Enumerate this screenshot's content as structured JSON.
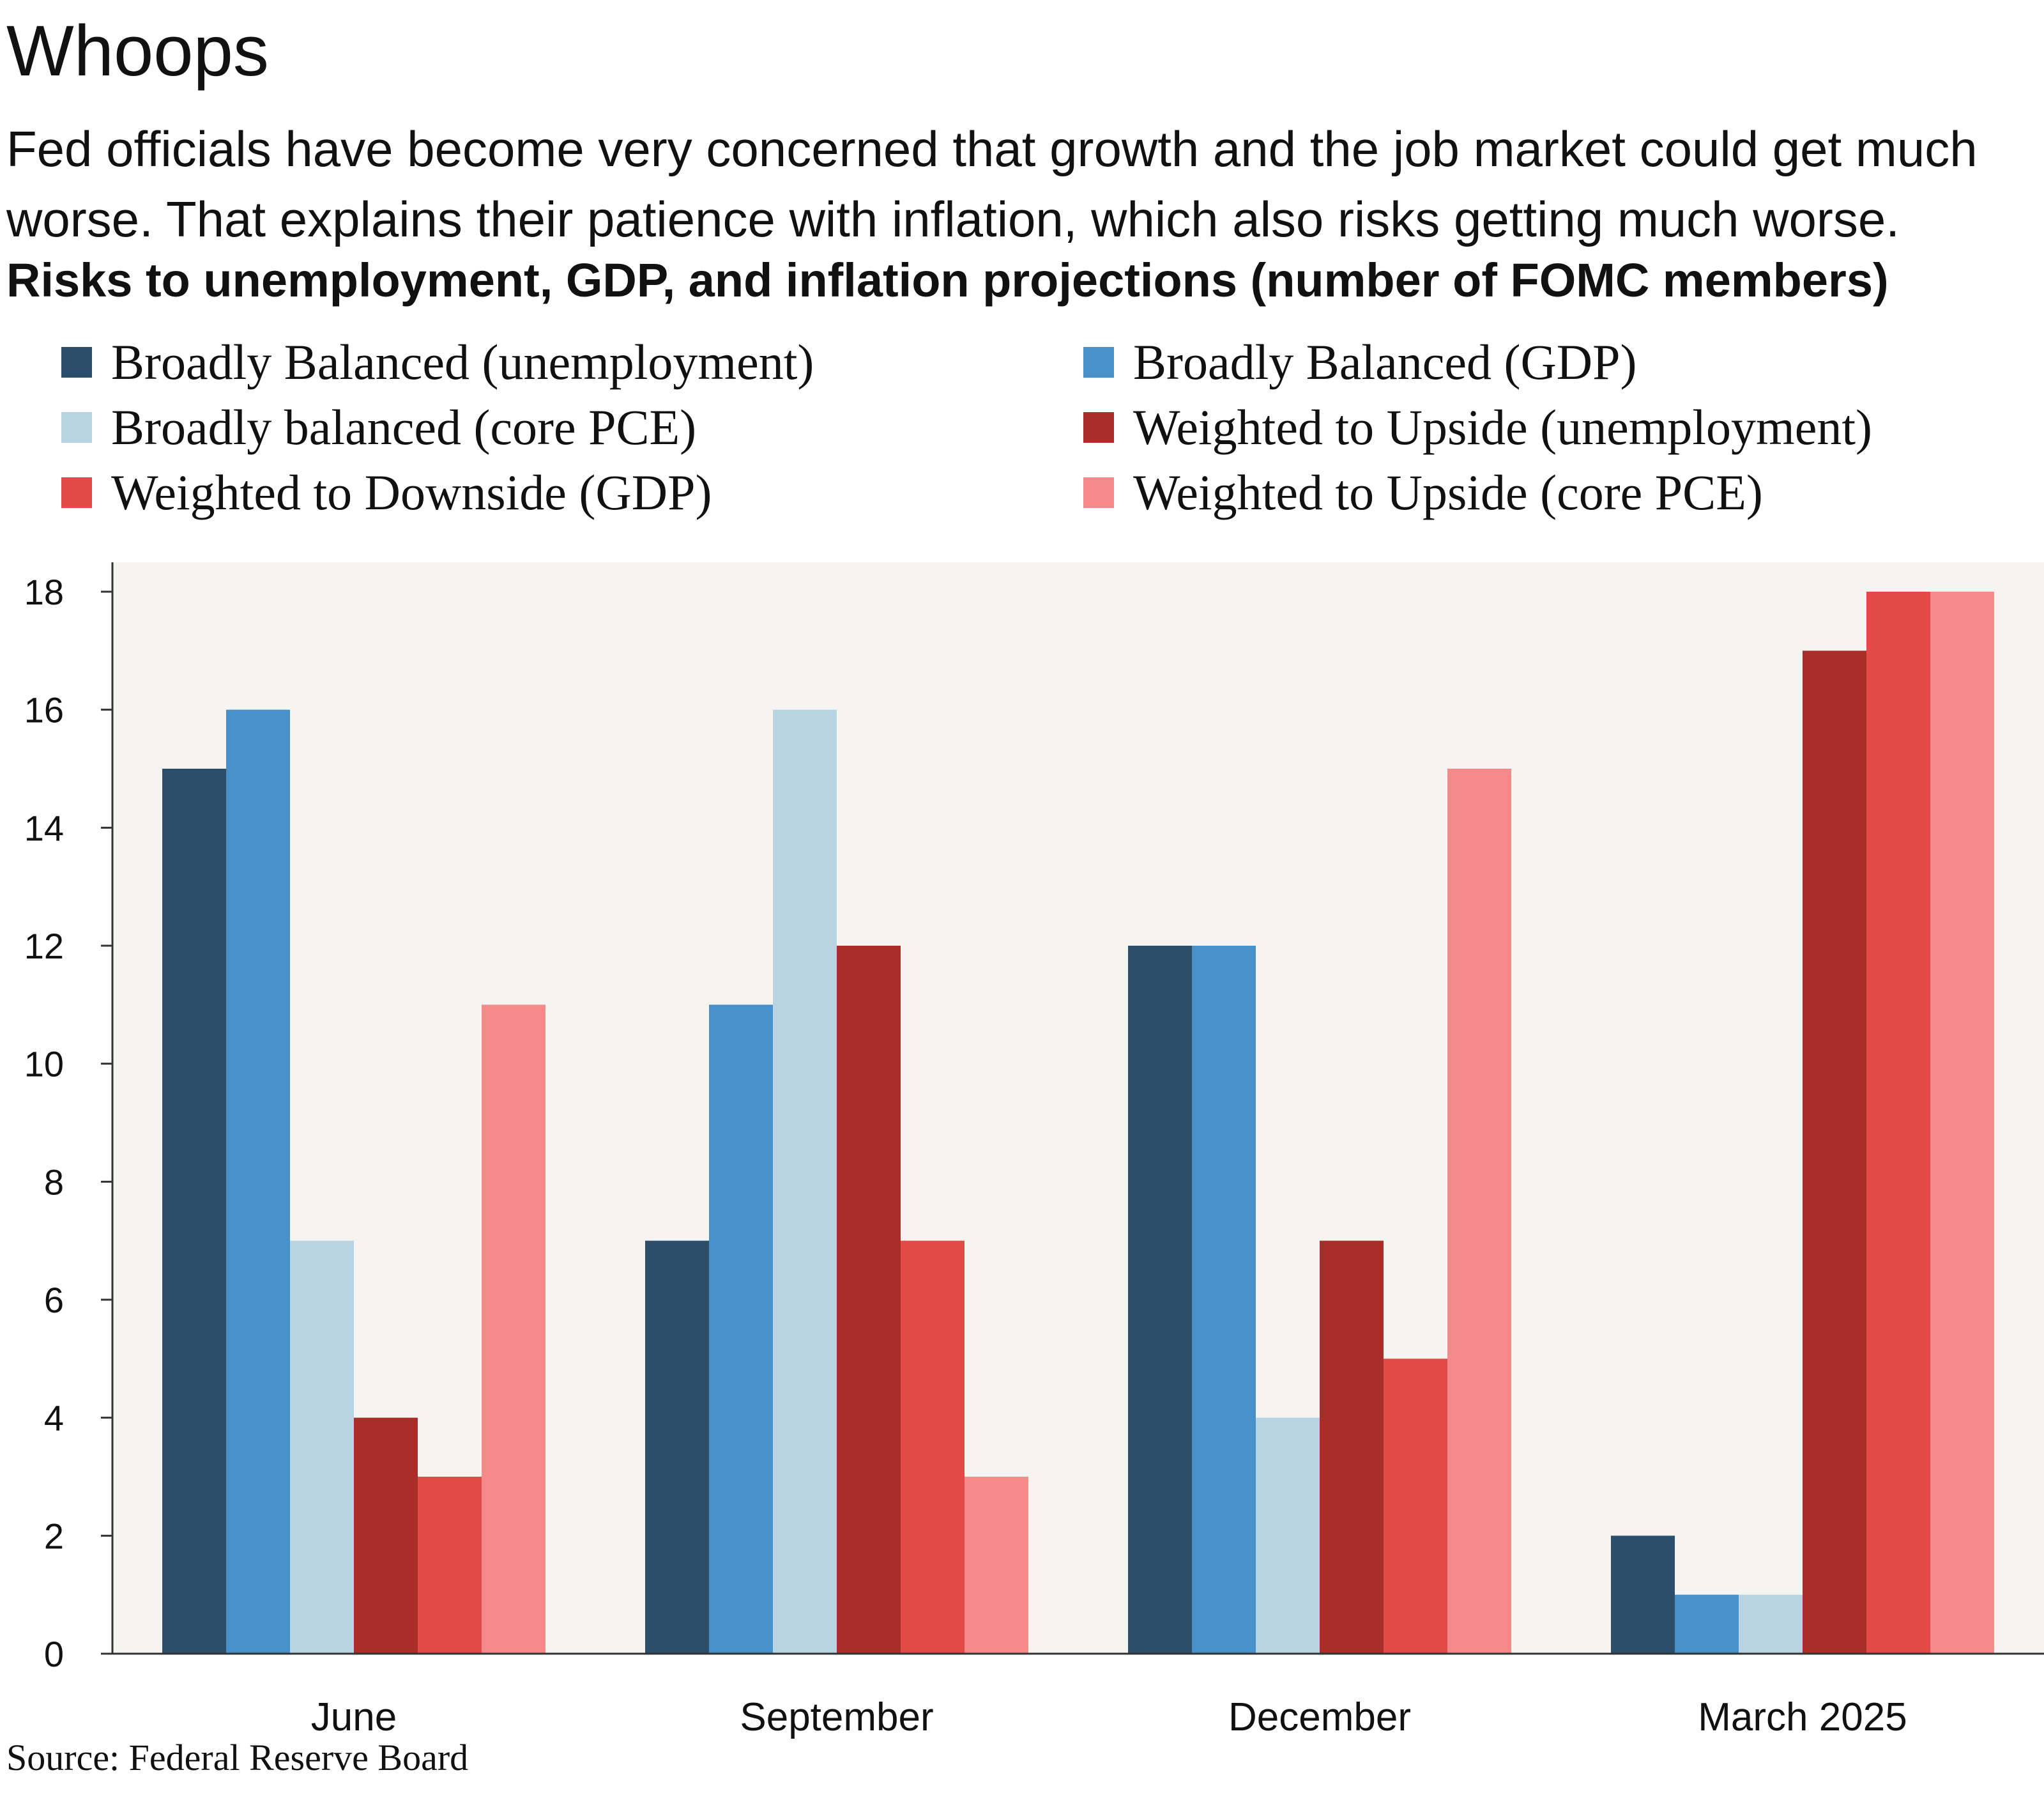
{
  "header": {
    "headline": "Whoops",
    "subtitle": "Fed officials have become very concerned that growth and the job market could get much\nworse. That explains their patience with inflation, which also risks getting much worse.",
    "chart_title": "Risks to unemployment, GDP, and inflation projections (number of FOMC members)"
  },
  "legend": [
    {
      "label": "Broadly Balanced (unemployment)",
      "color": "#2b4f6b"
    },
    {
      "label": "Broadly Balanced (GDP)",
      "color": "#4a90c8"
    },
    {
      "label": "Broadly balanced (core PCE)",
      "color": "#b8d4e2"
    },
    {
      "label": "Weighted to Upside (unemployment)",
      "color": "#a82e2a"
    },
    {
      "label": "Weighted to Downside (GDP)",
      "color": "#e34a47"
    },
    {
      "label": "Weighted to Upside (core PCE)",
      "color": "#f48b8a"
    }
  ],
  "footer": {
    "source": "Source: Federal Reserve Board"
  },
  "colors": {
    "plot_background": "#f6f4f1",
    "axis": "#333333"
  },
  "chart_data": {
    "type": "bar",
    "title": "Risks to unemployment, GDP, and inflation projections (number of FOMC members)",
    "categories": [
      "June",
      "September",
      "December",
      "March 2025"
    ],
    "ylim": [
      0,
      18
    ],
    "yticks": [
      0,
      2,
      4,
      6,
      8,
      10,
      12,
      14,
      16,
      18
    ],
    "grid": false,
    "legend_position": "top",
    "series": [
      {
        "name": "Broadly Balanced (unemployment)",
        "color": "#2b4f6b",
        "values": [
          15,
          7,
          12,
          2
        ]
      },
      {
        "name": "Broadly Balanced (GDP)",
        "color": "#4a90c8",
        "values": [
          16,
          11,
          12,
          1
        ]
      },
      {
        "name": "Broadly balanced (core PCE)",
        "color": "#b8d4e2",
        "values": [
          7,
          16,
          4,
          1
        ]
      },
      {
        "name": "Weighted to Upside (unemployment)",
        "color": "#a82e2a",
        "values": [
          4,
          12,
          7,
          17
        ]
      },
      {
        "name": "Weighted to Downside (GDP)",
        "color": "#e34a47",
        "values": [
          3,
          7,
          5,
          18
        ]
      },
      {
        "name": "Weighted to Upside (core PCE)",
        "color": "#f48b8a",
        "values": [
          11,
          3,
          15,
          18
        ]
      }
    ]
  }
}
